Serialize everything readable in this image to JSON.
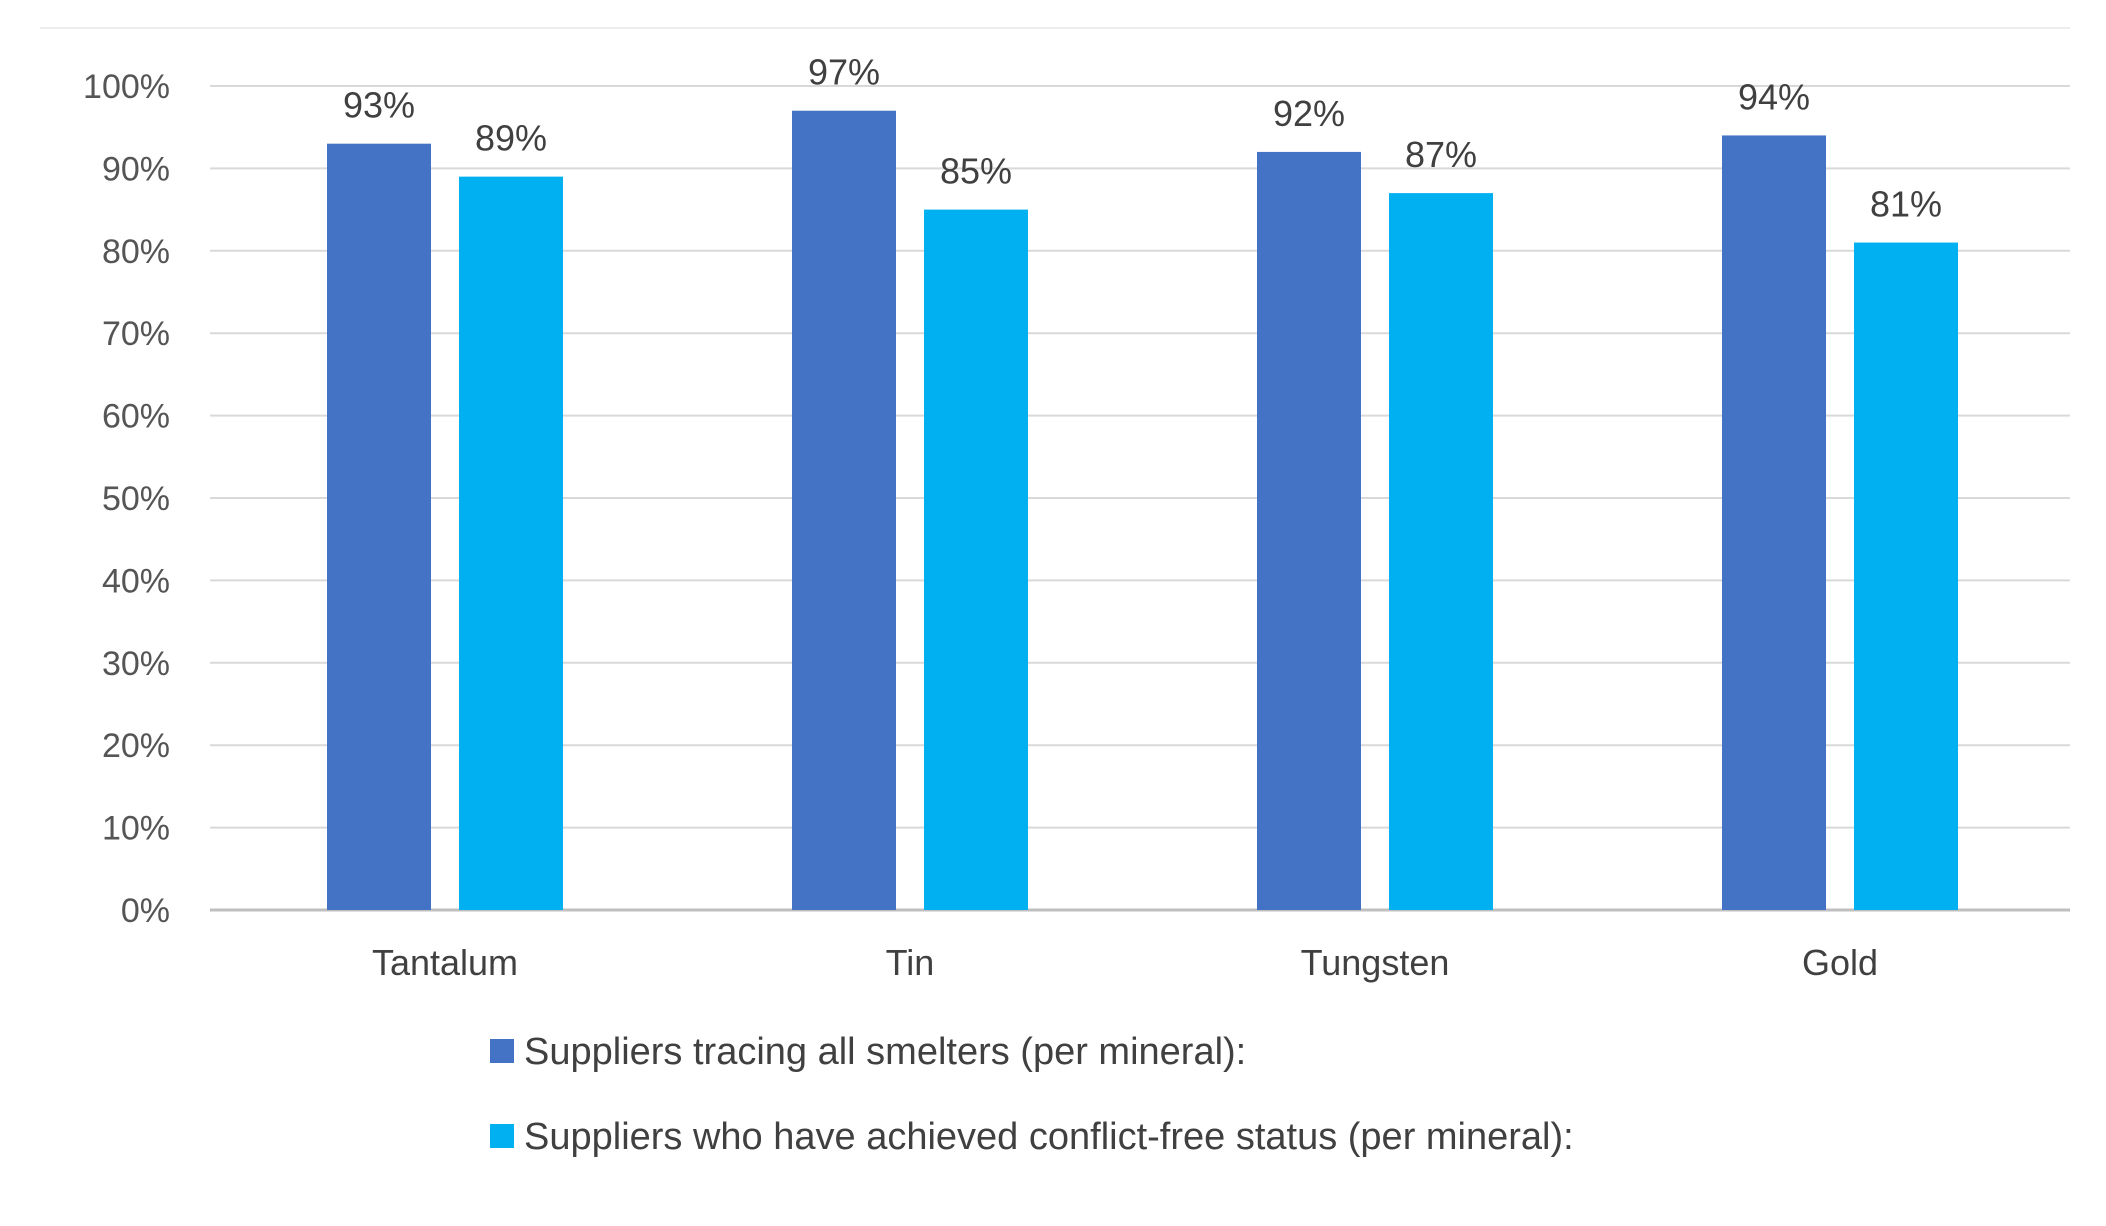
{
  "chart_data": {
    "type": "bar",
    "title": "",
    "xlabel": "",
    "ylabel": "",
    "categories": [
      "Tantalum",
      "Tin",
      "Tungsten",
      "Gold"
    ],
    "series": [
      {
        "name": "Suppliers tracing all smelters (per mineral):",
        "values": [
          93,
          97,
          92,
          94
        ],
        "labels": [
          "93%",
          "97%",
          "92%",
          "94%"
        ],
        "color": "#4472C4"
      },
      {
        "name": "Suppliers who have achieved conflict-free status (per mineral):",
        "values": [
          89,
          85,
          87,
          81
        ],
        "labels": [
          "89%",
          "85%",
          "87%",
          "81%"
        ],
        "color": "#00B0F0"
      }
    ],
    "ylim": [
      0,
      100
    ],
    "yticks": [
      0,
      10,
      20,
      30,
      40,
      50,
      60,
      70,
      80,
      90,
      100
    ],
    "ytick_labels": [
      "0%",
      "10%",
      "20%",
      "30%",
      "40%",
      "50%",
      "60%",
      "70%",
      "80%",
      "90%",
      "100%"
    ],
    "grid": true,
    "legend_position": "bottom"
  }
}
